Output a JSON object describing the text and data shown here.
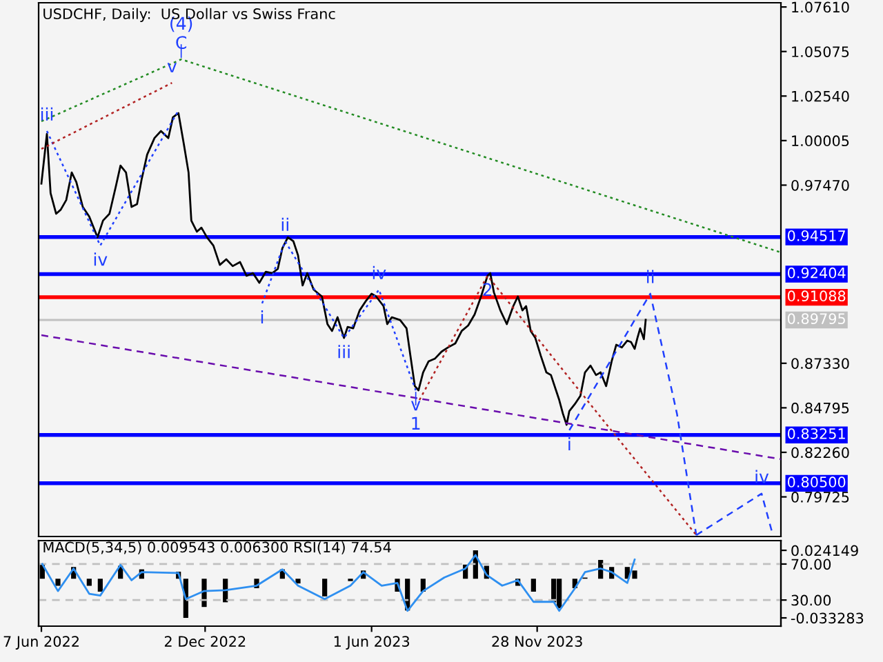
{
  "chart_data": [
    {
      "type": "line",
      "title": "USDCHF, Daily:  US Dollar vs Swiss Franc",
      "x": [
        "2022-06-07",
        "2022-06-13",
        "2022-06-17",
        "2022-06-23",
        "2022-06-28",
        "2022-07-04",
        "2022-07-10",
        "2022-07-15",
        "2022-07-22",
        "2022-07-29",
        "2022-08-07",
        "2022-08-13",
        "2022-08-20",
        "2022-08-27",
        "2022-09-01",
        "2022-09-07",
        "2022-09-13",
        "2022-09-19",
        "2022-09-24",
        "2022-09-30",
        "2022-10-08",
        "2022-10-15",
        "2022-10-23",
        "2022-10-28",
        "2022-11-03",
        "2022-11-09",
        "2022-11-14",
        "2022-11-17",
        "2022-11-23",
        "2022-11-28",
        "2022-12-04",
        "2022-12-11",
        "2022-12-18",
        "2022-12-25",
        "2023-01-01",
        "2023-01-09",
        "2023-01-16",
        "2023-01-23",
        "2023-01-30",
        "2023-02-06",
        "2023-02-13",
        "2023-02-19",
        "2023-02-24",
        "2023-03-02",
        "2023-03-08",
        "2023-03-13",
        "2023-03-18",
        "2023-03-23",
        "2023-03-30",
        "2023-04-08",
        "2023-04-14",
        "2023-04-19",
        "2023-04-25",
        "2023-05-02",
        "2023-05-06",
        "2023-05-12",
        "2023-05-19",
        "2023-05-26",
        "2023-06-01",
        "2023-06-06",
        "2023-06-14",
        "2023-06-18",
        "2023-06-23",
        "2023-07-02",
        "2023-07-09",
        "2023-07-13",
        "2023-07-18",
        "2023-07-22",
        "2023-07-27",
        "2023-08-02",
        "2023-08-09",
        "2023-08-16",
        "2023-08-23",
        "2023-08-31",
        "2023-09-07",
        "2023-09-14",
        "2023-09-21",
        "2023-09-28",
        "2023-10-05",
        "2023-10-08",
        "2023-10-12",
        "2023-10-19",
        "2023-10-26",
        "2023-11-02",
        "2023-11-07",
        "2023-11-12",
        "2023-11-16",
        "2023-11-21",
        "2023-11-26",
        "2023-12-02",
        "2023-12-08",
        "2023-12-13",
        "2023-12-18",
        "2023-12-22",
        "2023-12-26",
        "2023-12-30",
        "2024-01-02",
        "2024-01-08",
        "2024-01-14",
        "2024-01-19",
        "2024-01-25",
        "2024-01-31",
        "2024-02-05",
        "2024-02-11",
        "2024-02-17",
        "2024-02-22",
        "2024-02-28",
        "2024-03-05",
        "2024-03-09",
        "2024-03-13",
        "2024-03-16",
        "2024-03-19",
        "2024-03-23",
        "2024-03-25"
      ],
      "series": [
        {
          "color": "#000000",
          "line_style": "solid",
          "values": [
            0.9756,
            1.0039,
            0.9701,
            0.9584,
            0.9607,
            0.9662,
            0.9819,
            0.9764,
            0.9623,
            0.9568,
            0.945,
            0.9545,
            0.9584,
            0.9741,
            0.9858,
            0.9819,
            0.9623,
            0.9639,
            0.978,
            0.9921,
            1.0015,
            1.0055,
            1.0015,
            1.0133,
            1.0157,
            0.9976,
            0.9819,
            0.9545,
            0.9482,
            0.9505,
            0.945,
            0.9403,
            0.9293,
            0.9325,
            0.9286,
            0.9309,
            0.9231,
            0.9246,
            0.9191,
            0.9254,
            0.9246,
            0.927,
            0.9388,
            0.945,
            0.9427,
            0.9348,
            0.9176,
            0.9246,
            0.9152,
            0.9113,
            0.8956,
            0.8917,
            0.8995,
            0.8877,
            0.894,
            0.8932,
            0.9034,
            0.9089,
            0.9129,
            0.9113,
            0.9058,
            0.8956,
            0.8995,
            0.8979,
            0.8932,
            0.8783,
            0.8603,
            0.8579,
            0.8681,
            0.8744,
            0.876,
            0.8799,
            0.8823,
            0.8846,
            0.8917,
            0.8948,
            0.9011,
            0.9113,
            0.9231,
            0.9246,
            0.9136,
            0.9034,
            0.8956,
            0.9058,
            0.9113,
            0.9034,
            0.9058,
            0.8917,
            0.8877,
            0.8775,
            0.8681,
            0.8666,
            0.8587,
            0.8524,
            0.8446,
            0.8383,
            0.8461,
            0.8501,
            0.8548,
            0.8681,
            0.872,
            0.8666,
            0.8681,
            0.8603,
            0.8744,
            0.8838,
            0.8823,
            0.8862,
            0.8854,
            0.8815,
            0.8877,
            0.8932,
            0.887,
            0.898
          ]
        },
        {
          "color": "#1f3fff",
          "line_style": "dotted",
          "x": [
            "2022-06-13",
            "2022-08-10",
            "2022-11-03"
          ],
          "values": [
            1.0055,
            0.9403,
            1.0172
          ]
        },
        {
          "color": "#1f3fff",
          "line_style": "dotted",
          "x": [
            "2023-02-02",
            "2023-02-27",
            "2023-05-02",
            "2023-06-09",
            "2023-07-19"
          ],
          "values": [
            0.9074,
            0.9427,
            0.8877,
            0.9152,
            0.8579
          ]
        },
        {
          "color": "#1f3fff",
          "line_style": "dashed",
          "x": [
            "2024-01-02",
            "2024-03-30",
            "2024-04-28",
            "2024-05-19"
          ],
          "values": [
            0.8352,
            0.9129,
            0.8446,
            0.7755
          ]
        },
        {
          "color": "#1f3fff",
          "line_style": "dashed",
          "x": [
            "2024-05-19",
            "2024-07-29",
            "2024-08-09"
          ],
          "values": [
            0.7755,
            0.7991,
            0.7779
          ]
        },
        {
          "color": "#b22222",
          "line_style": "dotted",
          "x": [
            "2022-06-07",
            "2022-10-27"
          ],
          "values": [
            0.9953,
            1.0329
          ]
        },
        {
          "color": "#b22222",
          "line_style": "dotted",
          "x": [
            "2023-07-23",
            "2023-10-05",
            "2024-02-02",
            "2024-05-19"
          ],
          "values": [
            0.8524,
            0.9231,
            0.8446,
            0.7755
          ]
        },
        {
          "color": "#228b22",
          "line_style": "dotted",
          "x": [
            "2022-06-07",
            "2022-11-06",
            "2024-08-19"
          ],
          "values": [
            1.011,
            1.0463,
            0.9364
          ]
        },
        {
          "color": "#6a0dad",
          "line_style": "dashed",
          "x": [
            "2022-06-07",
            "2024-08-19"
          ],
          "values": [
            0.8893,
            0.8187
          ]
        }
      ],
      "xlim": [
        "2022-06-04",
        "2024-08-19"
      ],
      "ylim": [
        0.7747,
        1.0785
      ],
      "yticks": [
        {
          "value": 1.0761,
          "label": "1.07610"
        },
        {
          "value": 1.05075,
          "label": "1.05075"
        },
        {
          "value": 1.0254,
          "label": "1.02540"
        },
        {
          "value": 1.00005,
          "label": "1.00005"
        },
        {
          "value": 0.9747,
          "label": "0.97470"
        },
        {
          "value": 0.8733,
          "label": "0.87330"
        },
        {
          "value": 0.84795,
          "label": "0.84795"
        },
        {
          "value": 0.8226,
          "label": "0.82260"
        },
        {
          "value": 0.79725,
          "label": "0.79725"
        }
      ],
      "tick_labels": "y",
      "ref_lines": [
        {
          "axis": "y",
          "value": 0.94517,
          "label": "0.94517",
          "color": "#0000ff",
          "line_style": "solid"
        },
        {
          "axis": "y",
          "value": 0.92404,
          "label": "0.92404",
          "color": "#0000ff",
          "line_style": "solid"
        },
        {
          "axis": "y",
          "value": 0.91088,
          "label": "0.91088",
          "color": "#ff0000",
          "line_style": "solid"
        },
        {
          "axis": "y",
          "value": 0.89795,
          "label": "0.89795",
          "color": "#c0c0c0",
          "line_style": "solid"
        },
        {
          "axis": "y",
          "value": 0.83251,
          "label": "0.83251",
          "color": "#0000ff",
          "line_style": "solid"
        },
        {
          "axis": "y",
          "value": 0.805,
          "label": "0.80500",
          "color": "#0000ff",
          "line_style": "solid"
        }
      ],
      "annotations": [
        {
          "text": "C",
          "x": "2022-11-06",
          "y": 1.0463
        },
        {
          "text": "(4)",
          "x": "2022-11-06",
          "y": 1.0463
        },
        {
          "text": "v",
          "x": "2022-10-27",
          "y": 1.0329
        },
        {
          "text": "iii",
          "x": "2022-06-13",
          "y": 1.0055
        },
        {
          "text": "iv",
          "x": "2022-08-10",
          "y": 0.9403
        },
        {
          "text": "ii",
          "x": "2023-02-27",
          "y": 0.9427
        },
        {
          "text": "i",
          "x": "2023-02-02",
          "y": 0.9074
        },
        {
          "text": "iv",
          "x": "2023-06-09",
          "y": 0.9152
        },
        {
          "text": "iii",
          "x": "2023-05-02",
          "y": 0.8877
        },
        {
          "text": "v",
          "x": "2023-07-19",
          "y": 0.8579
        },
        {
          "text": "1",
          "x": "2023-07-19",
          "y": 0.8579
        },
        {
          "text": "2",
          "x": "2023-10-05",
          "y": 0.9231
        },
        {
          "text": "ii",
          "x": "2024-03-30",
          "y": 0.9129
        },
        {
          "text": "i",
          "x": "2024-01-02",
          "y": 0.8352
        },
        {
          "text": "iv",
          "x": "2024-07-29",
          "y": 0.7991
        }
      ],
      "grid": false,
      "legend": false
    },
    {
      "type": "bar",
      "title": "MACD(5,34,5) 0.009543 0.006300 RSI(14) 74.54",
      "x": [
        "2022-06-08",
        "2022-06-25",
        "2022-07-12",
        "2022-07-29",
        "2022-08-10",
        "2022-09-01",
        "2022-09-13",
        "2022-09-24",
        "2022-11-03",
        "2022-11-11",
        "2022-12-01",
        "2022-12-24",
        "2023-01-27",
        "2023-02-24",
        "2023-03-13",
        "2023-04-11",
        "2023-05-09",
        "2023-05-23",
        "2023-06-12",
        "2023-06-29",
        "2023-07-10",
        "2023-07-27",
        "2023-08-19",
        "2023-09-11",
        "2023-09-22",
        "2023-10-04",
        "2023-10-21",
        "2023-11-07",
        "2023-11-24",
        "2023-12-16",
        "2023-12-22",
        "2024-01-08",
        "2024-01-19",
        "2024-02-05",
        "2024-02-17",
        "2024-03-05",
        "2024-03-13"
      ],
      "series": [
        {
          "color": "#000000",
          "values": [
            0.012,
            -0.006,
            0.01,
            -0.006,
            -0.011,
            0.011,
            0.0,
            0.008,
            0.006,
            -0.033283,
            -0.024,
            -0.02,
            -0.008,
            0.008,
            -0.004,
            -0.015,
            -0.002,
            0.007,
            0.0,
            -0.011,
            -0.027,
            -0.011,
            0.0,
            0.012,
            0.024149,
            0.011,
            0.0,
            -0.006,
            -0.011,
            -0.02,
            -0.025,
            -0.008,
            0.001,
            0.016,
            0.01,
            0.01,
            0.007
          ]
        },
        {
          "type": "line",
          "axis": "y2",
          "color": "#2e8ff0",
          "line_style": "solid",
          "values": [
            70,
            40,
            65,
            37,
            35,
            69,
            52,
            61,
            60,
            31,
            40,
            41,
            46,
            64,
            46,
            31,
            46,
            61,
            46,
            49,
            18,
            40,
            55,
            65,
            80,
            58,
            46,
            52,
            28,
            28,
            18,
            43,
            61,
            65,
            61,
            49,
            75
          ]
        }
      ],
      "xlim": [
        "2022-06-04",
        "2024-08-19"
      ],
      "xticks": [
        {
          "value": "2022-06-07",
          "label": "7 Jun 2022"
        },
        {
          "value": "2022-12-02",
          "label": "2 Dec 2022"
        },
        {
          "value": "2023-06-01",
          "label": "1 Jun 2023"
        },
        {
          "value": "2023-11-28",
          "label": "28 Nov 2023"
        }
      ],
      "ylim": [
        -0.0403,
        0.0324
      ],
      "yticks": [
        {
          "value": 0.024149,
          "label": "0.024149"
        },
        {
          "value": -0.033283,
          "label": "-0.033283"
        }
      ],
      "y2lim": [
        1,
        96
      ],
      "y2ticks": [
        {
          "value": 70,
          "label": "70.00"
        },
        {
          "value": 30,
          "label": "30.00"
        }
      ],
      "ref_lines": [
        {
          "axis": "y2",
          "value": 70,
          "color": "#c0c0c0",
          "line_style": "dashed"
        },
        {
          "axis": "y2",
          "value": 30,
          "color": "#c0c0c0",
          "line_style": "dashed"
        }
      ],
      "grid": false,
      "legend": false
    }
  ]
}
